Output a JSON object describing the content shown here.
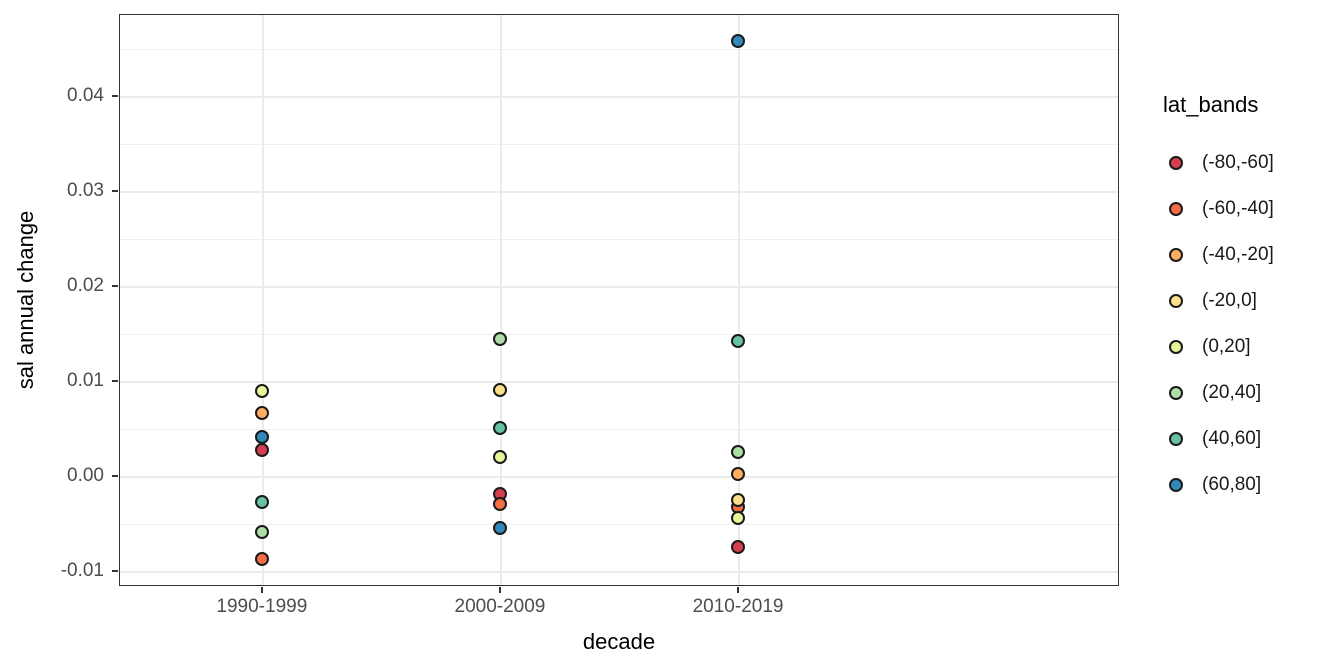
{
  "chart_data": {
    "type": "scatter",
    "title": "",
    "xlabel": "decade",
    "ylabel": "sal annual change",
    "legend_title": "lat_bands",
    "legend_position": "right",
    "grid": true,
    "point_style": "filled-circle-black-outline",
    "categories": [
      "1990-1999",
      "2000-2009",
      "2010-2019"
    ],
    "ylim": [
      -0.0116,
      0.0486
    ],
    "y_ticks": [
      {
        "value": -0.01,
        "label": "-0.01"
      },
      {
        "value": 0.0,
        "label": "0.00"
      },
      {
        "value": 0.01,
        "label": "0.01"
      },
      {
        "value": 0.02,
        "label": "0.02"
      },
      {
        "value": 0.03,
        "label": "0.03"
      },
      {
        "value": 0.04,
        "label": "0.04"
      }
    ],
    "y_minor_ticks": [
      -0.005,
      0.005,
      0.015,
      0.025,
      0.035,
      0.045
    ],
    "series": [
      {
        "name": "(-80,-60]",
        "color": "#D53E4F",
        "values": [
          0.0027,
          -0.0019,
          -0.0075
        ]
      },
      {
        "name": "(-60,-40]",
        "color": "#F46D43",
        "values": [
          -0.0088,
          -0.003,
          -0.0033
        ]
      },
      {
        "name": "(-40,-20]",
        "color": "#FDAE61",
        "values": [
          0.0066,
          null,
          0.0002
        ]
      },
      {
        "name": "(-20,0]",
        "color": "#FEE08B",
        "values": [
          null,
          0.009,
          -0.0026
        ]
      },
      {
        "name": "(0,20]",
        "color": "#E6F598",
        "values": [
          0.0089,
          0.002,
          -0.0044
        ]
      },
      {
        "name": "(20,40]",
        "color": "#ABDDA4",
        "values": [
          -0.0059,
          0.0144,
          0.0025
        ]
      },
      {
        "name": "(40,60]",
        "color": "#66C2A5",
        "values": [
          -0.0028,
          0.005,
          0.0142
        ]
      },
      {
        "name": "(60,80]",
        "color": "#3288BD",
        "values": [
          0.0041,
          -0.0055,
          0.0458
        ]
      }
    ]
  }
}
